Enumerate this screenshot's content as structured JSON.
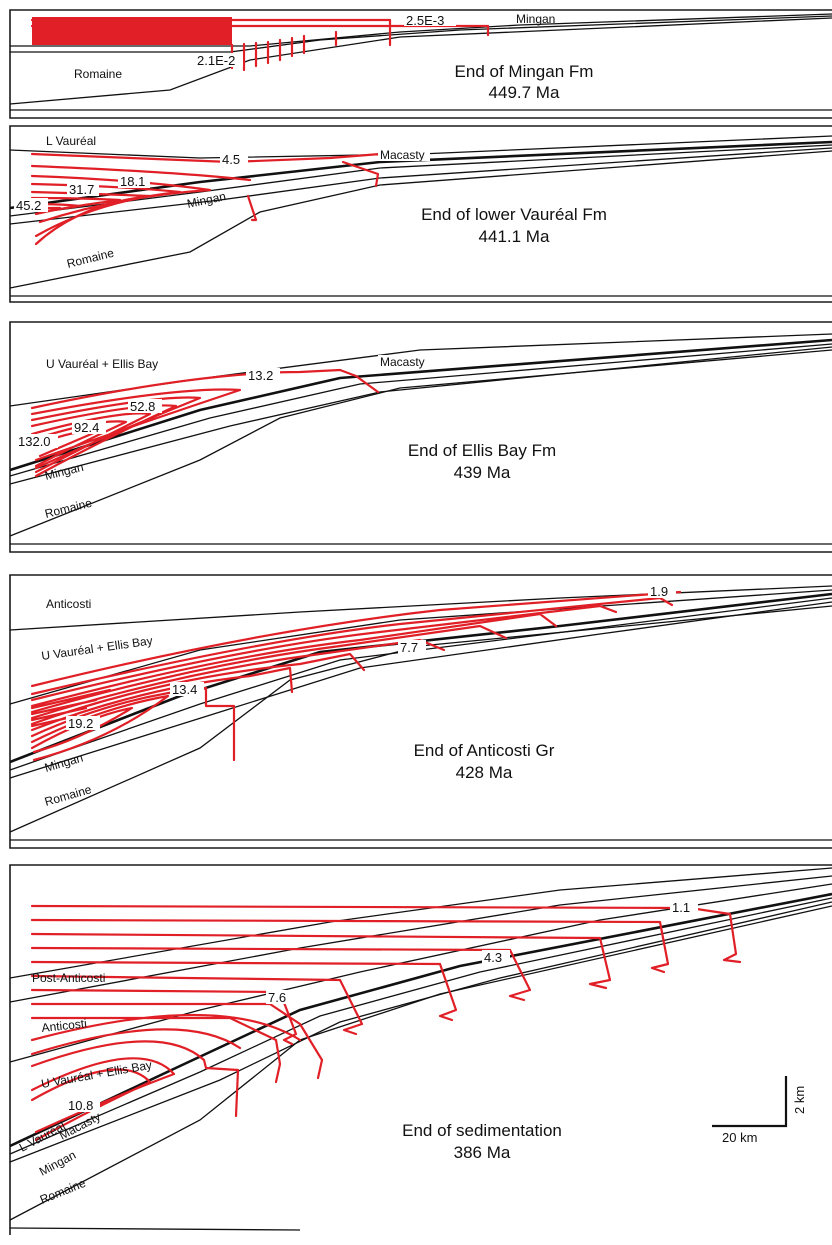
{
  "panels": [
    {
      "title": "End of Mingan Fm",
      "age": "449.7 Ma",
      "units": [
        "Mingan",
        "Romaine"
      ],
      "isotherm_labels": [
        "2.5E-3",
        "2.1E-2"
      ]
    },
    {
      "title": "End of lower Vauréal Fm",
      "age": "441.1 Ma",
      "units": [
        "L Vauréal",
        "Macasty",
        "Mingan",
        "Romaine"
      ],
      "isotherm_labels": [
        "4.5",
        "18.1",
        "31.7",
        "45.2"
      ]
    },
    {
      "title": "End of Ellis Bay Fm",
      "age": "439 Ma",
      "units": [
        "U Vauréal + Ellis Bay",
        "Macasty",
        "Mingan",
        "Romaine"
      ],
      "isotherm_labels": [
        "13.2",
        "52.8",
        "92.4",
        "132.0"
      ]
    },
    {
      "title": "End of Anticosti Gr",
      "age": "428 Ma",
      "units": [
        "Anticosti",
        "U Vauréal + Ellis Bay",
        "Mingan",
        "Romaine"
      ],
      "isotherm_labels": [
        "1.9",
        "7.7",
        "13.4",
        "19.2"
      ]
    },
    {
      "title": "End of sedimentation",
      "age": "386 Ma",
      "units": [
        "Post-Anticosti",
        "Anticosti",
        "U Vauréal + Ellis Bay",
        "L Vauréal",
        "Macasty",
        "Mingan",
        "Romaine"
      ],
      "isotherm_labels": [
        "1.1",
        "4.3",
        "7.6",
        "10.8"
      ]
    }
  ],
  "scale_bar": {
    "horizontal": "20 km",
    "vertical": "2 km"
  }
}
